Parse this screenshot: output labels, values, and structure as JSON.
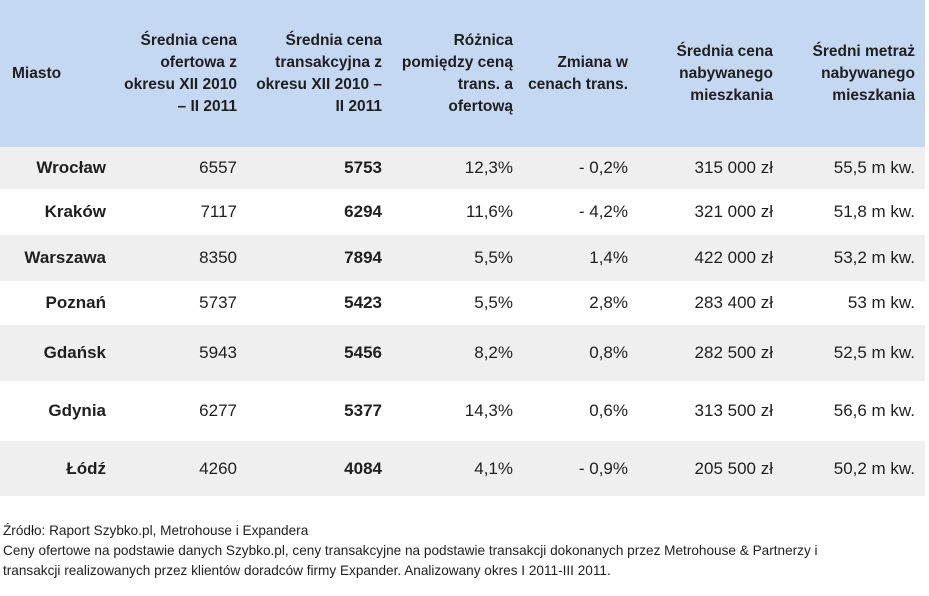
{
  "headers": [
    "Miasto",
    "Średnia cena ofertowa z okresu XII 2010 – II 2011",
    "Średnia cena transakcyjna z okresu XII 2010 – II 2011",
    "Różnica pomiędzy ceną trans. a ofertową",
    "Zmiana w cenach trans.",
    "Średnia cena nabywanego mieszkania",
    "Średni metraż nabywanego mieszkania"
  ],
  "rows": [
    {
      "city": "Wrocław",
      "offer": "6557",
      "trans": "5753",
      "diff": "12,3%",
      "change": "- 0,2%",
      "price": "315 000 zł",
      "area": "55,5 m kw."
    },
    {
      "city": "Kraków",
      "offer": "7117",
      "trans": "6294",
      "diff": "11,6%",
      "change": "- 4,2%",
      "price": "321 000 zł",
      "area": "51,8 m kw."
    },
    {
      "city": "Warszawa",
      "offer": "8350",
      "trans": "7894",
      "diff": "5,5%",
      "change": "1,4%",
      "price": "422 000 zł",
      "area": "53,2 m kw."
    },
    {
      "city": "Poznań",
      "offer": "5737",
      "trans": "5423",
      "diff": "5,5%",
      "change": "2,8%",
      "price": "283 400 zł",
      "area": "53 m kw."
    },
    {
      "city": "Gdańsk",
      "offer": "5943",
      "trans": "5456",
      "diff": "8,2%",
      "change": "0,8%",
      "price": "282 500 zł",
      "area": "52,5 m  kw."
    },
    {
      "city": "Gdynia",
      "offer": "6277",
      "trans": "5377",
      "diff": "14,3%",
      "change": "0,6%",
      "price": "313 500 zł",
      "area": "56,6 m kw."
    },
    {
      "city": "Łódź",
      "offer": "4260",
      "trans": "4084",
      "diff": "4,1%",
      "change": "- 0,9%",
      "price": "205 500 zł",
      "area": "50,2 m kw."
    }
  ],
  "source": {
    "line1": "Źródło: Raport Szybko.pl, Metrohouse i Expandera",
    "line2": "Ceny ofertowe na podstawie danych Szybko.pl, ceny transakcyjne na podstawie transakcji dokonanych przez Metrohouse & Partnerzy i",
    "line3": "transakcji realizowanych przez klientów doradców firmy Expander. Analizowany okres I 2011-III 2011."
  },
  "colors": {
    "header_bg": "#c5d8f1",
    "shaded_row": "#efefef"
  }
}
